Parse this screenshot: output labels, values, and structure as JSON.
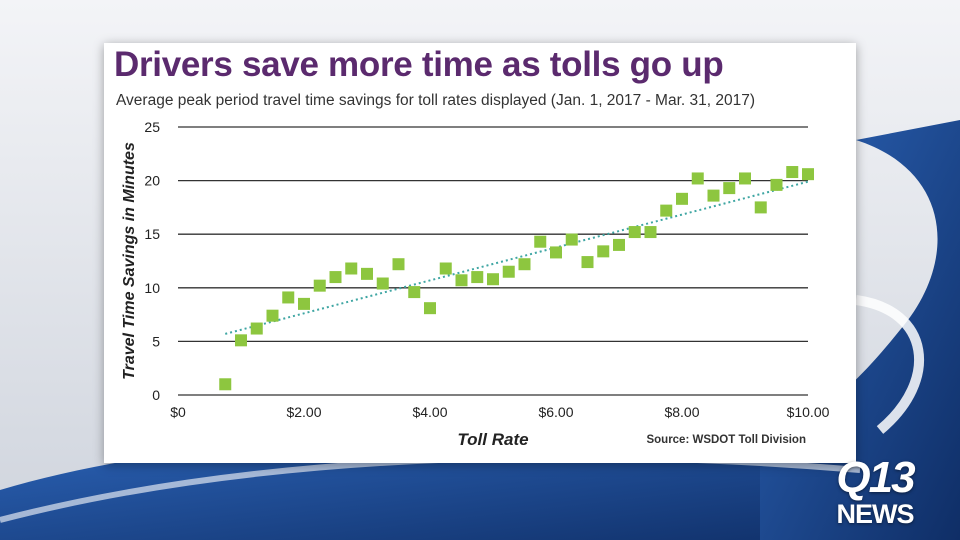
{
  "chart_data": {
    "type": "scatter",
    "title": "Drivers save more time as tolls go up",
    "subtitle": "Average peak period travel time savings for toll rates displayed (Jan. 1, 2017 - Mar. 31, 2017)",
    "xlabel": "Toll Rate",
    "ylabel": "Travel Time Savings in Minutes",
    "source": "Source: WSDOT Toll Division",
    "xlim": [
      0,
      10
    ],
    "ylim": [
      0,
      25
    ],
    "x_ticks": [
      0,
      2,
      4,
      6,
      8,
      10
    ],
    "x_tick_labels": [
      "$0",
      "$2.00",
      "$4.00",
      "$6.00",
      "$8.00",
      "$10.00"
    ],
    "y_ticks": [
      0,
      5,
      10,
      15,
      20,
      25
    ],
    "y_tick_labels": [
      "0",
      "5",
      "10",
      "15",
      "20",
      "25"
    ],
    "grid": "horizontal",
    "marker_color": "#8dc63f",
    "trendline_color": "#3fa6a3",
    "trendline": {
      "x": [
        0.75,
        10.0
      ],
      "y": [
        5.7,
        19.9
      ]
    },
    "points": [
      {
        "x": 0.75,
        "y": 1.0
      },
      {
        "x": 1.0,
        "y": 5.1
      },
      {
        "x": 1.25,
        "y": 6.2
      },
      {
        "x": 1.5,
        "y": 7.4
      },
      {
        "x": 1.75,
        "y": 9.1
      },
      {
        "x": 2.0,
        "y": 8.5
      },
      {
        "x": 2.25,
        "y": 10.2
      },
      {
        "x": 2.5,
        "y": 11.0
      },
      {
        "x": 2.75,
        "y": 11.8
      },
      {
        "x": 3.0,
        "y": 11.3
      },
      {
        "x": 3.25,
        "y": 10.4
      },
      {
        "x": 3.5,
        "y": 12.2
      },
      {
        "x": 3.75,
        "y": 9.6
      },
      {
        "x": 4.0,
        "y": 8.1
      },
      {
        "x": 4.25,
        "y": 11.8
      },
      {
        "x": 4.5,
        "y": 10.7
      },
      {
        "x": 4.75,
        "y": 11.0
      },
      {
        "x": 5.0,
        "y": 10.8
      },
      {
        "x": 5.25,
        "y": 11.5
      },
      {
        "x": 5.5,
        "y": 12.2
      },
      {
        "x": 5.75,
        "y": 14.3
      },
      {
        "x": 6.0,
        "y": 13.3
      },
      {
        "x": 6.25,
        "y": 14.5
      },
      {
        "x": 6.5,
        "y": 12.4
      },
      {
        "x": 6.75,
        "y": 13.4
      },
      {
        "x": 7.0,
        "y": 14.0
      },
      {
        "x": 7.25,
        "y": 15.2
      },
      {
        "x": 7.5,
        "y": 15.2
      },
      {
        "x": 7.75,
        "y": 17.2
      },
      {
        "x": 8.0,
        "y": 18.3
      },
      {
        "x": 8.25,
        "y": 20.2
      },
      {
        "x": 8.5,
        "y": 18.6
      },
      {
        "x": 8.75,
        "y": 19.3
      },
      {
        "x": 9.0,
        "y": 20.2
      },
      {
        "x": 9.25,
        "y": 17.5
      },
      {
        "x": 9.5,
        "y": 19.6
      },
      {
        "x": 9.75,
        "y": 20.8
      },
      {
        "x": 10.0,
        "y": 20.6
      }
    ]
  },
  "logo": {
    "top": "Q13",
    "bottom": "NEWS"
  },
  "colors": {
    "title": "#5b2a6e",
    "background_blue": "#1f4f9e",
    "background_light": "#e6e9ef"
  }
}
